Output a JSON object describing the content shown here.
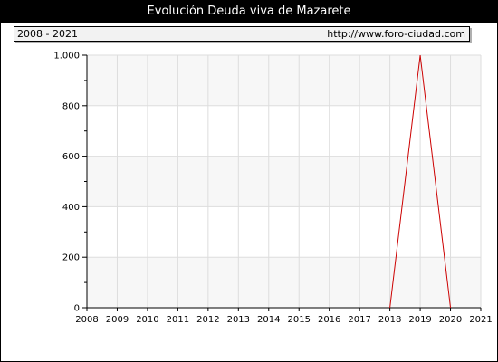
{
  "header": {
    "title": "Evolución Deuda viva de Mazarete",
    "range_label": "2008 - 2021",
    "source_label": "http://www.foro-ciudad.com"
  },
  "chart_data": {
    "type": "line",
    "title": "Evolución Deuda viva de Mazarete",
    "xlabel": "",
    "ylabel": "",
    "x": [
      2008,
      2009,
      2010,
      2011,
      2012,
      2013,
      2014,
      2015,
      2016,
      2017,
      2018,
      2019,
      2020,
      2021
    ],
    "xlim": [
      2008,
      2021
    ],
    "ylim": [
      0,
      1000
    ],
    "y_ticks": [
      0,
      200,
      400,
      600,
      800,
      1000
    ],
    "y_tick_labels": [
      "0",
      "200",
      "400",
      "600",
      "800",
      "1.000"
    ],
    "grid": true,
    "series": [
      {
        "name": "",
        "color": "#cc0000",
        "points": [
          {
            "x": 2018,
            "y": 0
          },
          {
            "x": 2019,
            "y": 1000
          },
          {
            "x": 2020,
            "y": 0
          }
        ]
      }
    ],
    "colors": {
      "band_light": "#f7f7f7",
      "band_white": "#ffffff",
      "grid": "#dddddd",
      "axis": "#000000"
    }
  }
}
